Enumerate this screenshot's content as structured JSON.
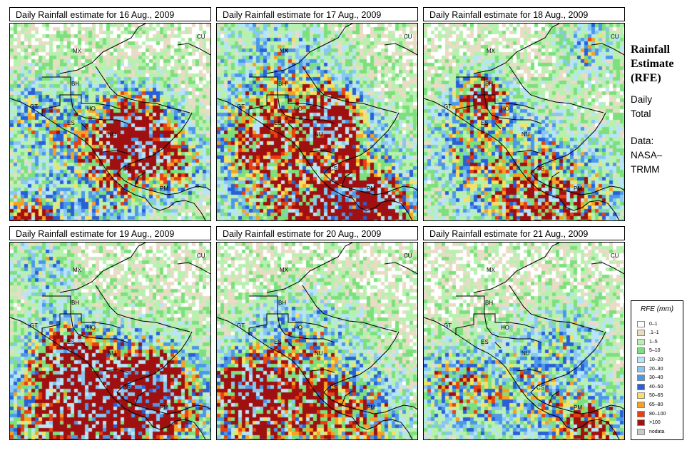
{
  "panels": [
    {
      "title": "Daily Rainfall estimate for  16 Aug., 2009",
      "day": 16
    },
    {
      "title": "Daily Rainfall estimate for  17 Aug., 2009",
      "day": 17
    },
    {
      "title": "Daily Rainfall estimate for  18 Aug., 2009",
      "day": 18
    },
    {
      "title": "Daily Rainfall estimate for  19 Aug., 2009",
      "day": 19
    },
    {
      "title": "Daily Rainfall estimate for  20 Aug., 2009",
      "day": 20
    },
    {
      "title": "Daily Rainfall estimate for  21 Aug., 2009",
      "day": 21
    }
  ],
  "country_labels": [
    "MX",
    "CU",
    "BH",
    "GT",
    "HO",
    "ES",
    "NU",
    "CS",
    "PM"
  ],
  "sidebar": {
    "title_line1": "Rainfall",
    "title_line2": "Estimate",
    "title_line3": "(RFE)",
    "daily": "Daily",
    "total": "Total",
    "data_label": "Data:",
    "data_src1": "NASA–",
    "data_src2": "TRMM"
  },
  "legend": {
    "title": "RFE (mm)",
    "entries": [
      {
        "label": "0–1",
        "color": "#ffffff"
      },
      {
        "label": ".1–1",
        "color": "#e8dcc4"
      },
      {
        "label": "1–5",
        "color": "#b8f0b0"
      },
      {
        "label": "5–10",
        "color": "#7ce07c"
      },
      {
        "label": "10–20",
        "color": "#b8e4f8"
      },
      {
        "label": "20–30",
        "color": "#88c8f0"
      },
      {
        "label": "30–40",
        "color": "#4c98e8"
      },
      {
        "label": "40–50",
        "color": "#2860d8"
      },
      {
        "label": "50–65",
        "color": "#f8e060"
      },
      {
        "label": "65–80",
        "color": "#f8a020"
      },
      {
        "label": "80–100",
        "color": "#e84010"
      },
      {
        "label": ">100",
        "color": "#a01010"
      },
      {
        "label": "nodata",
        "color": "#c8c8c8"
      }
    ]
  }
}
